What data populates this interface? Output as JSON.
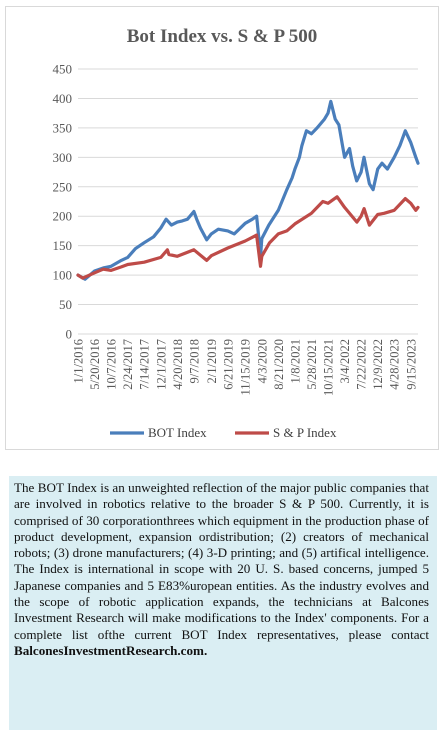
{
  "chart_data": {
    "type": "line",
    "title": "Bot Index vs. S & P 500",
    "xlabel": "",
    "ylabel": "",
    "ylim": [
      0,
      450
    ],
    "yticks": [
      0,
      50,
      100,
      150,
      200,
      250,
      300,
      350,
      400,
      450
    ],
    "grid": true,
    "legend": "bottom",
    "x_tick_labels": [
      "1/1/2016",
      "5/20/2016",
      "10/7/2016",
      "2/24/2017",
      "7/14/2017",
      "12/1/2017",
      "4/20/2018",
      "9/7/2018",
      "2/1/2019",
      "6/21/2019",
      "11/15/2019",
      "4/3/2020",
      "8/21/2020",
      "1/8/2021",
      "5/28/2021",
      "10/15/2021",
      "3/4/2022",
      "7/22/2022",
      "12/9/2022",
      "4/28/2023",
      "9/15/2023"
    ],
    "series": [
      {
        "name": "BOT Index",
        "color": "#4a7ebb",
        "x": [
          "2016-01-01",
          "2016-03-01",
          "2016-05-20",
          "2016-08-01",
          "2016-10-07",
          "2017-01-01",
          "2017-02-24",
          "2017-05-01",
          "2017-07-14",
          "2017-10-01",
          "2017-12-01",
          "2018-01-15",
          "2018-03-01",
          "2018-04-20",
          "2018-06-01",
          "2018-07-15",
          "2018-09-07",
          "2018-10-01",
          "2018-11-01",
          "2018-12-24",
          "2019-02-01",
          "2019-04-01",
          "2019-06-21",
          "2019-08-15",
          "2019-11-15",
          "2020-01-15",
          "2020-02-19",
          "2020-03-16",
          "2020-03-23",
          "2020-04-03",
          "2020-06-01",
          "2020-08-21",
          "2020-11-01",
          "2020-12-15",
          "2021-01-08",
          "2021-02-15",
          "2021-03-08",
          "2021-04-15",
          "2021-05-28",
          "2021-07-15",
          "2021-09-15",
          "2021-10-15",
          "2021-11-08",
          "2021-12-15",
          "2022-01-15",
          "2022-02-15",
          "2022-03-04",
          "2022-04-15",
          "2022-05-12",
          "2022-06-15",
          "2022-07-22",
          "2022-08-15",
          "2022-09-30",
          "2022-10-31",
          "2022-12-09",
          "2023-01-15",
          "2023-03-01",
          "2023-04-28",
          "2023-06-15",
          "2023-07-31",
          "2023-09-15",
          "2023-10-27",
          "2023-11-15"
        ],
        "values": [
          100,
          93,
          107,
          112,
          115,
          125,
          130,
          145,
          155,
          165,
          180,
          195,
          185,
          190,
          192,
          195,
          208,
          195,
          180,
          160,
          170,
          178,
          175,
          170,
          188,
          195,
          200,
          150,
          130,
          162,
          185,
          210,
          245,
          265,
          280,
          300,
          320,
          345,
          340,
          350,
          365,
          375,
          395,
          365,
          355,
          320,
          300,
          315,
          285,
          260,
          275,
          300,
          255,
          245,
          280,
          290,
          280,
          300,
          320,
          345,
          325,
          300,
          290
        ]
      },
      {
        "name": "S & P Index",
        "color": "#be4b48",
        "x": [
          "2016-01-01",
          "2016-02-11",
          "2016-05-20",
          "2016-08-01",
          "2016-10-07",
          "2017-01-01",
          "2017-02-24",
          "2017-07-14",
          "2017-12-01",
          "2018-01-26",
          "2018-02-08",
          "2018-04-20",
          "2018-09-07",
          "2018-12-24",
          "2019-02-01",
          "2019-06-21",
          "2019-11-15",
          "2020-02-19",
          "2020-03-23",
          "2020-04-03",
          "2020-06-08",
          "2020-08-21",
          "2020-11-01",
          "2021-01-08",
          "2021-05-28",
          "2021-09-01",
          "2021-10-15",
          "2021-12-31",
          "2022-03-04",
          "2022-06-16",
          "2022-07-22",
          "2022-08-16",
          "2022-09-30",
          "2022-12-09",
          "2023-02-01",
          "2023-04-28",
          "2023-07-31",
          "2023-09-15",
          "2023-10-27",
          "2023-11-15"
        ],
        "values": [
          100,
          95,
          104,
          110,
          108,
          114,
          118,
          122,
          130,
          143,
          135,
          132,
          143,
          125,
          133,
          146,
          158,
          168,
          115,
          132,
          155,
          170,
          175,
          187,
          205,
          225,
          222,
          233,
          215,
          190,
          200,
          213,
          185,
          203,
          205,
          210,
          230,
          222,
          210,
          215
        ]
      }
    ]
  },
  "note": {
    "text": "The BOT Index is an unweighted reflection of the major public companies that are involved in robotics relative to the broader S & P 500. Currently, it is comprised of 30 corporationthrees which equipment in the production phase of product development, expansion ordistribution; (2) creators of mechanical robots; (3) drone manufacturers; (4) 3-D printing; and (5) artifical intelligence. The Index is international in scope with 20 U. S. based concerns, jumped 5 Japanese companies and 5 E83%uropean entities. As the industry evolves and the scope of robotic application expands, the technicians at Balcones Investment Research will make modifications to the Index' components. For a complete list ofthe current BOT Index representatives, please contact",
    "link": "BalconesInvestmentResearch.com."
  }
}
